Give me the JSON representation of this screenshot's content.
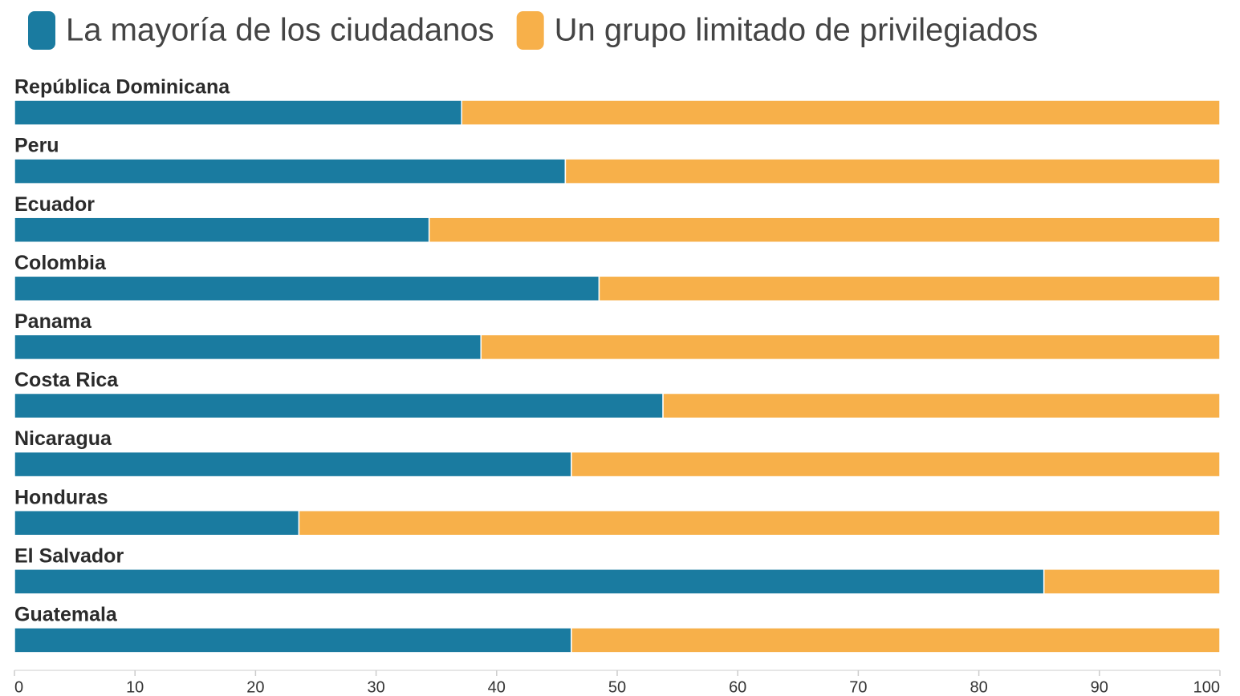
{
  "chart_data": {
    "type": "stacked-bar-horizontal",
    "categories": [
      "República Dominicana",
      "Peru",
      "Ecuador",
      "Colombia",
      "Panama",
      "Costa Rica",
      "Nicaragua",
      "Honduras",
      "El Salvador",
      "Guatemala"
    ],
    "series": [
      {
        "name": "La mayoría de los ciudadanos",
        "color": "#1a7ba0",
        "values": [
          37.1,
          45.7,
          34.4,
          48.5,
          38.7,
          53.8,
          46.2,
          23.6,
          85.4,
          46.2
        ]
      },
      {
        "name": "Un grupo limitado de privilegiados",
        "color": "#f7b04a",
        "values": [
          62.9,
          54.3,
          65.6,
          51.5,
          61.3,
          46.2,
          53.8,
          76.4,
          14.6,
          53.8
        ]
      }
    ],
    "xlim": [
      0,
      100
    ],
    "xticks": [
      0,
      10,
      20,
      30,
      40,
      50,
      60,
      70,
      80,
      90,
      100
    ],
    "legend": "top-left"
  }
}
